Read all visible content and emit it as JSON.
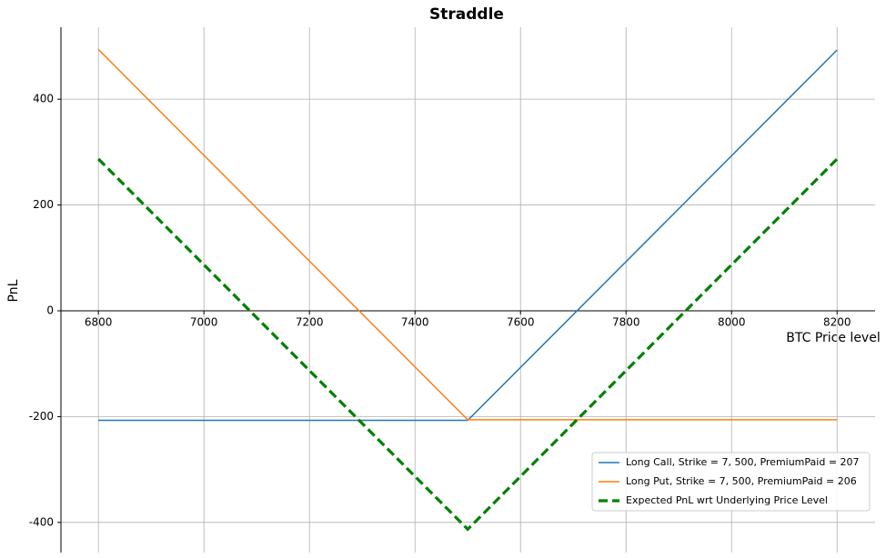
{
  "chart_data": {
    "type": "line",
    "title": "Straddle",
    "x_label": "BTC Price level",
    "y_label": "PnL",
    "x": [
      6800,
      7500,
      8200
    ],
    "series": [
      {
        "name": "Long Call, Strike = 7, 500, PremiumPaid = 207",
        "color": "#1f77b4",
        "linestyle": "solid",
        "values": [
          -207,
          -207,
          493
        ]
      },
      {
        "name": "Long Put, Strike = 7, 500, PremiumPaid = 206",
        "color": "#ff7f0e",
        "linestyle": "solid",
        "values": [
          494,
          -206,
          -206
        ]
      },
      {
        "name": "Expected PnL wrt Underlying Price Level",
        "color": "#008000",
        "linestyle": "dashed",
        "values": [
          287,
          -413,
          287
        ]
      }
    ],
    "xlim": [
      6729,
      8272
    ],
    "ylim": [
      -457,
      536
    ],
    "xticks": [
      6800,
      7000,
      7200,
      7400,
      7600,
      7800,
      8000,
      8200
    ],
    "yticks": [
      -400,
      -200,
      0,
      200,
      400
    ],
    "grid": true,
    "legend": "lower right"
  }
}
